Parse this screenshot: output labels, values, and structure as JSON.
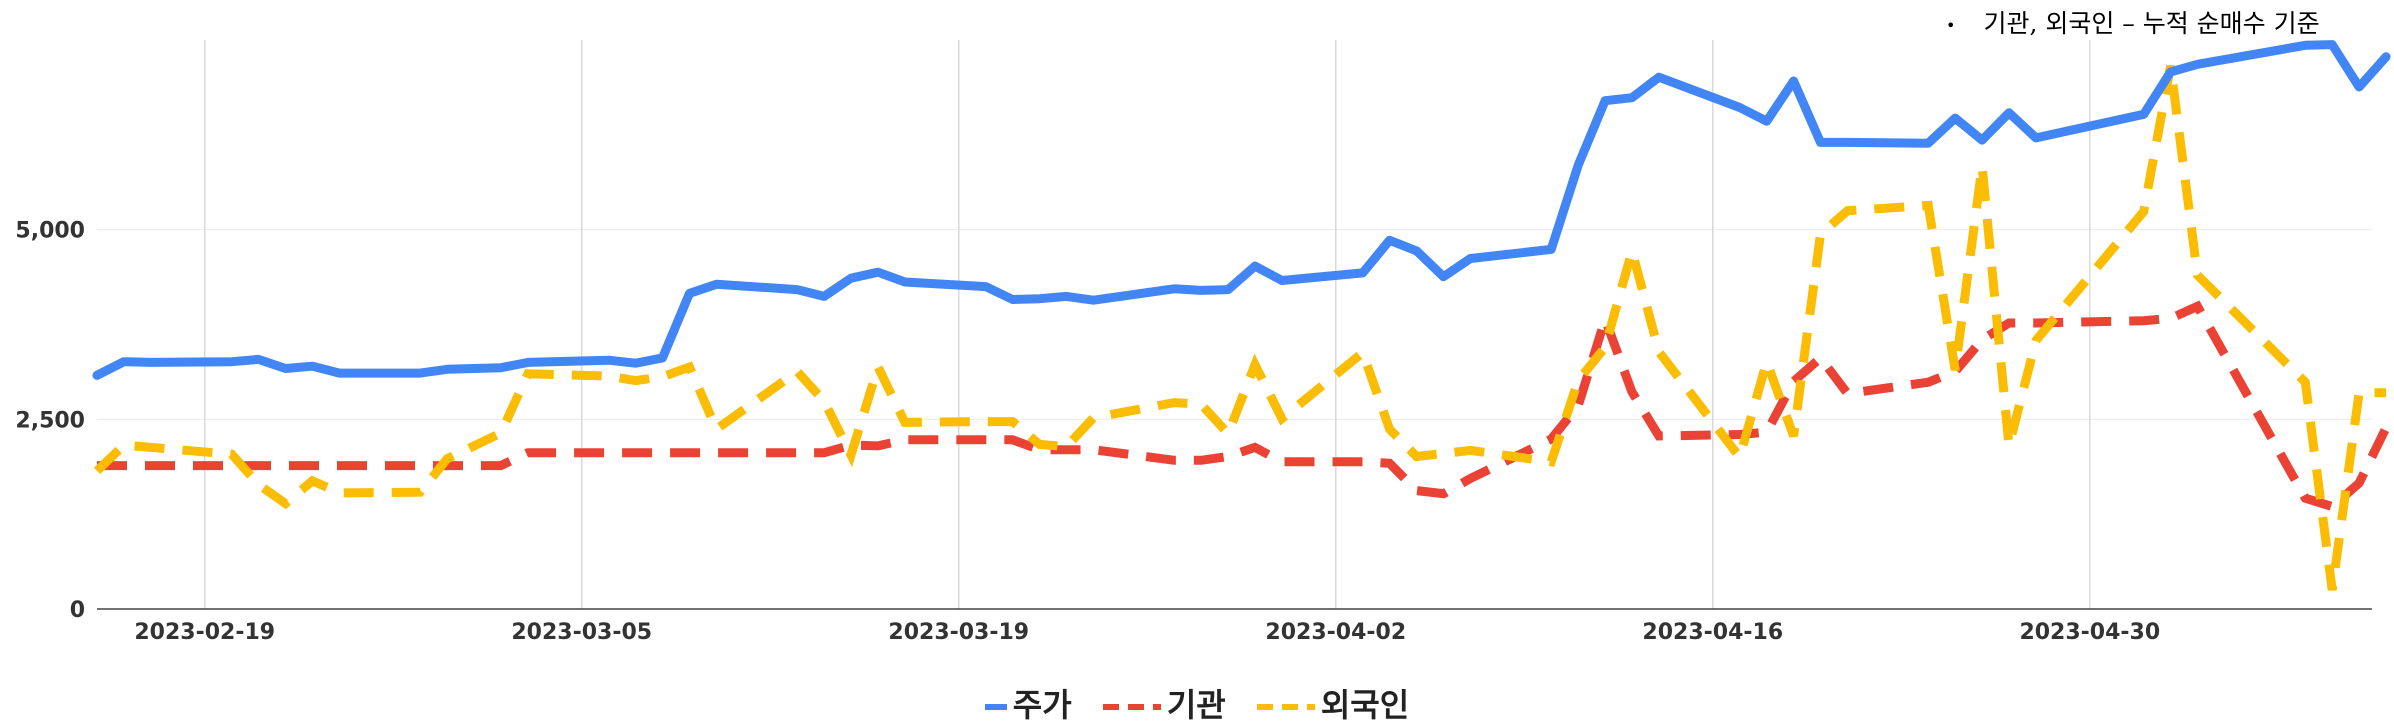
{
  "note": {
    "bullet": "•",
    "text": "기관, 외국인 – 누적 순매수 기준"
  },
  "colors": {
    "price": "#4285F4",
    "institution": "#EA4335",
    "foreign": "#FBBC04",
    "grid": "#d9d9d9",
    "axis": "#333333"
  },
  "chart_data": {
    "type": "line",
    "title": "",
    "xlabel": "",
    "ylabel": "",
    "ylim": [
      0,
      7500
    ],
    "yticks": [
      0,
      2500,
      5000
    ],
    "ytick_labels": [
      "0",
      "2,500",
      "5,000"
    ],
    "xlim": [
      "2023-02-15",
      "2023-05-11"
    ],
    "xticks": [
      "2023-02-19",
      "2023-03-05",
      "2023-03-19",
      "2023-04-02",
      "2023-04-16",
      "2023-04-30"
    ],
    "grid": {
      "vertical": true,
      "horizontal": true
    },
    "legend": "bottom",
    "series": [
      {
        "name": "주가",
        "style": "solid",
        "x": [
          "2023-02-15",
          "2023-02-16",
          "2023-02-17",
          "2023-02-20",
          "2023-02-21",
          "2023-02-22",
          "2023-02-23",
          "2023-02-24",
          "2023-02-27",
          "2023-02-28",
          "2023-03-02",
          "2023-03-03",
          "2023-03-06",
          "2023-03-07",
          "2023-03-08",
          "2023-03-09",
          "2023-03-10",
          "2023-03-13",
          "2023-03-14",
          "2023-03-15",
          "2023-03-16",
          "2023-03-17",
          "2023-03-20",
          "2023-03-21",
          "2023-03-22",
          "2023-03-23",
          "2023-03-24",
          "2023-03-27",
          "2023-03-28",
          "2023-03-29",
          "2023-03-30",
          "2023-03-31",
          "2023-04-03",
          "2023-04-04",
          "2023-04-05",
          "2023-04-06",
          "2023-04-07",
          "2023-04-10",
          "2023-04-11",
          "2023-04-12",
          "2023-04-13",
          "2023-04-14",
          "2023-04-17",
          "2023-04-18",
          "2023-04-19",
          "2023-04-20",
          "2023-04-21",
          "2023-04-24",
          "2023-04-25",
          "2023-04-26",
          "2023-04-27",
          "2023-04-28",
          "2023-05-02",
          "2023-05-03",
          "2023-05-04",
          "2023-05-08",
          "2023-05-09",
          "2023-05-10",
          "2023-05-11"
        ],
        "values": [
          3080,
          3260,
          3250,
          3260,
          3290,
          3170,
          3200,
          3110,
          3110,
          3160,
          3180,
          3250,
          3280,
          3240,
          3310,
          4160,
          4280,
          4210,
          4120,
          4360,
          4440,
          4310,
          4250,
          4080,
          4090,
          4120,
          4070,
          4220,
          4200,
          4210,
          4520,
          4330,
          4430,
          4860,
          4720,
          4380,
          4620,
          4740,
          5850,
          6700,
          6740,
          7010,
          6610,
          6430,
          6960,
          6150,
          6150,
          6140,
          6470,
          6180,
          6540,
          6210,
          6520,
          7080,
          7180,
          7430,
          7440,
          6880,
          7280
        ]
      },
      {
        "name": "기관",
        "style": "dashed",
        "x": [
          "2023-02-15",
          "2023-02-16",
          "2023-02-17",
          "2023-02-20",
          "2023-02-21",
          "2023-02-22",
          "2023-02-23",
          "2023-02-24",
          "2023-02-27",
          "2023-02-28",
          "2023-03-02",
          "2023-03-03",
          "2023-03-06",
          "2023-03-07",
          "2023-03-08",
          "2023-03-09",
          "2023-03-10",
          "2023-03-13",
          "2023-03-14",
          "2023-03-15",
          "2023-03-16",
          "2023-03-17",
          "2023-03-20",
          "2023-03-21",
          "2023-03-22",
          "2023-03-23",
          "2023-03-24",
          "2023-03-27",
          "2023-03-28",
          "2023-03-29",
          "2023-03-30",
          "2023-03-31",
          "2023-04-03",
          "2023-04-04",
          "2023-04-05",
          "2023-04-06",
          "2023-04-07",
          "2023-04-10",
          "2023-04-11",
          "2023-04-12",
          "2023-04-13",
          "2023-04-14",
          "2023-04-17",
          "2023-04-18",
          "2023-04-19",
          "2023-04-20",
          "2023-04-21",
          "2023-04-24",
          "2023-04-25",
          "2023-04-26",
          "2023-04-27",
          "2023-04-28",
          "2023-05-02",
          "2023-05-03",
          "2023-05-04",
          "2023-05-08",
          "2023-05-09",
          "2023-05-10",
          "2023-05-11"
        ],
        "values": [
          1890,
          1890,
          1890,
          1890,
          1890,
          1890,
          1890,
          1890,
          1890,
          1890,
          1890,
          2060,
          2060,
          2060,
          2060,
          2060,
          2060,
          2060,
          2060,
          2160,
          2150,
          2230,
          2230,
          2230,
          2100,
          2100,
          2100,
          1960,
          1960,
          2010,
          2130,
          1940,
          1940,
          1920,
          1560,
          1520,
          1720,
          2240,
          2680,
          3820,
          2860,
          2280,
          2300,
          2330,
          3000,
          3310,
          2840,
          2990,
          3130,
          3550,
          3770,
          3770,
          3800,
          3830,
          3990,
          1460,
          1350,
          1660,
          2390
        ]
      },
      {
        "name": "외국인",
        "style": "dashed",
        "x": [
          "2023-02-15",
          "2023-02-16",
          "2023-02-17",
          "2023-02-20",
          "2023-02-21",
          "2023-02-22",
          "2023-02-23",
          "2023-02-24",
          "2023-02-27",
          "2023-02-28",
          "2023-03-02",
          "2023-03-03",
          "2023-03-06",
          "2023-03-07",
          "2023-03-08",
          "2023-03-09",
          "2023-03-10",
          "2023-03-13",
          "2023-03-14",
          "2023-03-15",
          "2023-03-16",
          "2023-03-17",
          "2023-03-20",
          "2023-03-21",
          "2023-03-22",
          "2023-03-23",
          "2023-03-24",
          "2023-03-27",
          "2023-03-28",
          "2023-03-29",
          "2023-03-30",
          "2023-03-31",
          "2023-04-03",
          "2023-04-04",
          "2023-04-05",
          "2023-04-06",
          "2023-04-07",
          "2023-04-10",
          "2023-04-11",
          "2023-04-12",
          "2023-04-13",
          "2023-04-14",
          "2023-04-17",
          "2023-04-18",
          "2023-04-19",
          "2023-04-20",
          "2023-04-21",
          "2023-04-24",
          "2023-04-25",
          "2023-04-26",
          "2023-04-27",
          "2023-04-28",
          "2023-05-02",
          "2023-05-03",
          "2023-05-04",
          "2023-05-08",
          "2023-05-09",
          "2023-05-10",
          "2023-05-11"
        ],
        "values": [
          1820,
          2160,
          2130,
          2040,
          1640,
          1390,
          1690,
          1530,
          1540,
          1980,
          2320,
          3100,
          3070,
          3010,
          3060,
          3190,
          2370,
          3130,
          2740,
          2030,
          3190,
          2460,
          2470,
          2470,
          2170,
          2140,
          2520,
          2720,
          2700,
          2310,
          3220,
          2510,
          3380,
          2370,
          2010,
          2050,
          2090,
          1940,
          3010,
          3450,
          4720,
          3390,
          2000,
          3260,
          2280,
          4940,
          5250,
          5320,
          3150,
          5840,
          2150,
          3540,
          5240,
          7160,
          4400,
          2990,
          250,
          2850,
          2850
        ]
      }
    ]
  }
}
